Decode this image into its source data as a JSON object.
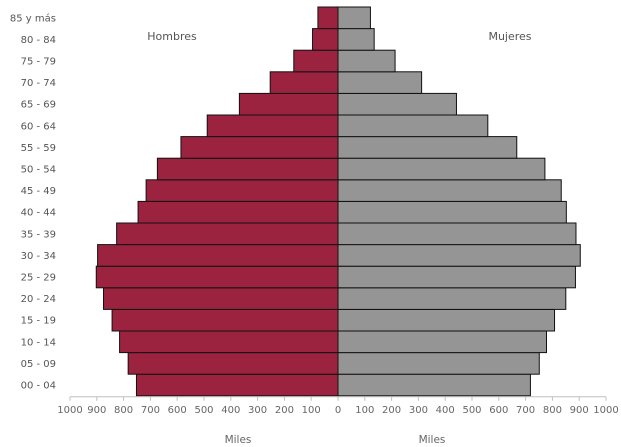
{
  "chart_data": {
    "type": "bar",
    "orientation": "horizontal",
    "categories": [
      "00 - 04",
      "05 - 09",
      "10 - 14",
      "15 - 19",
      "20 - 24",
      "25 - 29",
      "30 - 34",
      "35 - 39",
      "40 - 44",
      "45 - 49",
      "50 - 54",
      "55 - 59",
      "60 - 64",
      "65 - 69",
      "70 - 74",
      "75 - 79",
      "80 - 84",
      "85 y más"
    ],
    "series": [
      {
        "name": "Hombres",
        "color": "#9b2340",
        "side": "left",
        "values": [
          752,
          783,
          815,
          843,
          875,
          902,
          897,
          826,
          746,
          716,
          674,
          586,
          488,
          368,
          253,
          165,
          95,
          75
        ]
      },
      {
        "name": "Mujeres",
        "color": "#959595",
        "side": "right",
        "values": [
          718,
          751,
          778,
          808,
          850,
          886,
          904,
          888,
          852,
          833,
          772,
          667,
          559,
          442,
          312,
          213,
          135,
          121
        ]
      }
    ],
    "xlim": [
      -1000,
      1000
    ],
    "x_ticks": [
      -1000,
      -900,
      -800,
      -700,
      -600,
      -500,
      -400,
      -300,
      -200,
      -100,
      0,
      100,
      200,
      300,
      400,
      500,
      600,
      700,
      800,
      900,
      1000
    ],
    "x_tick_labels": [
      "1000",
      "900",
      "800",
      "700",
      "600",
      "500",
      "400",
      "300",
      "200",
      "100",
      "0",
      "100",
      "200",
      "300",
      "400",
      "500",
      "600",
      "700",
      "800",
      "900",
      "1000"
    ],
    "xlabel_left": "Miles",
    "xlabel_right": "Miles",
    "legend": [
      "Hombres",
      "Mujeres"
    ],
    "grid": false,
    "bar_edge_color": "#111111"
  }
}
